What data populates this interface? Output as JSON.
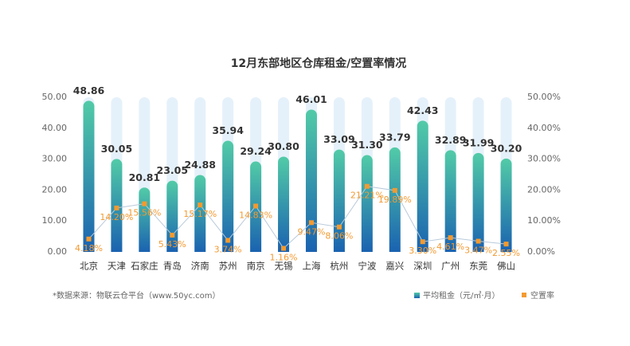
{
  "chart_data": {
    "type": "bar-line",
    "title": "12月东部地区仓库租金/空置率情况",
    "source": "*数据来源：物联云仓平台（www.50yc.com）",
    "categories": [
      "北京",
      "天津",
      "石家庄",
      "青岛",
      "济南",
      "苏州",
      "南京",
      "无锡",
      "上海",
      "杭州",
      "宁波",
      "嘉兴",
      "深圳",
      "广州",
      "东莞",
      "佛山"
    ],
    "series": [
      {
        "name": "平均租金（元/㎡·月）",
        "type": "bar",
        "color": "#1a62b0",
        "values": [
          48.86,
          30.05,
          20.81,
          23.05,
          24.88,
          35.94,
          29.24,
          30.8,
          46.01,
          33.09,
          31.3,
          33.79,
          42.43,
          32.89,
          31.99,
          30.2
        ],
        "value_labels": [
          "48.86",
          "30.05",
          "20.81",
          "23.05",
          "24.88",
          "35.94",
          "29.24",
          "30.80",
          "46.01",
          "33.09",
          "31.30",
          "33.79",
          "42.43",
          "32.89",
          "31.99",
          "30.20"
        ]
      },
      {
        "name": "空置率",
        "type": "line",
        "axis": "y2",
        "color": "#f39a30",
        "values": [
          4.18,
          14.2,
          15.56,
          5.43,
          15.17,
          3.74,
          14.83,
          1.16,
          9.47,
          8.06,
          21.21,
          19.89,
          3.3,
          4.61,
          3.47,
          2.55
        ],
        "value_labels": [
          "4.18%",
          "14.20%",
          "15.56%",
          "5.43%",
          "15.17%",
          "3.74%",
          "14.83%",
          "1.16%",
          "9.47%",
          "8.06%",
          "21.21%",
          "19.89%",
          "3.30%",
          "4.61%",
          "3.47%",
          "2.55%"
        ]
      }
    ],
    "ylim": [
      0,
      50
    ],
    "yticks": [
      {
        "value": 0,
        "label": "0.00"
      },
      {
        "value": 10,
        "label": "10.00"
      },
      {
        "value": 20,
        "label": "20.00"
      },
      {
        "value": 30,
        "label": "30.00"
      },
      {
        "value": 40,
        "label": "40.00"
      },
      {
        "value": 50,
        "label": "50.00"
      }
    ],
    "y2lim": [
      0,
      50
    ],
    "y2ticks": [
      {
        "value": 0,
        "label": "0.00%"
      },
      {
        "value": 10,
        "label": "10.00%"
      },
      {
        "value": 20,
        "label": "20.00%"
      },
      {
        "value": 30,
        "label": "30.00%"
      },
      {
        "value": 40,
        "label": "40.00%"
      },
      {
        "value": 50,
        "label": "50.00%"
      }
    ]
  }
}
